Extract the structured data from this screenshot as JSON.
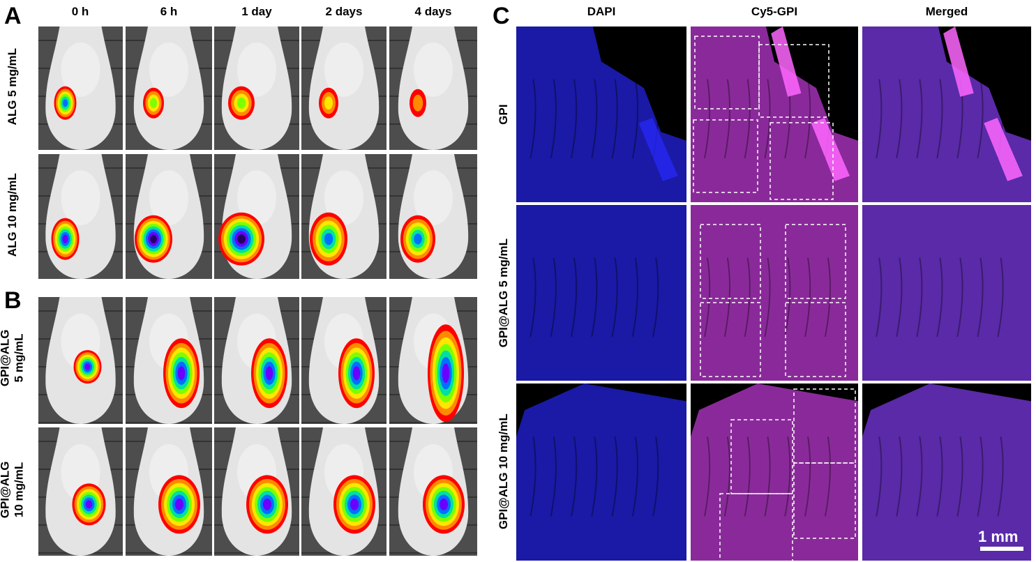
{
  "panels": {
    "a": "A",
    "b": "B",
    "c": "C"
  },
  "timepoints": [
    "0 h",
    "6 h",
    "1 day",
    "2 days",
    "4 days"
  ],
  "row_labels": {
    "alg5": "ALG 5 mg/mL",
    "alg10": "ALG 10 mg/mL",
    "gpi5_line1": "GPI@ALG",
    "gpi5_line2": "5 mg/mL",
    "gpi10_line1": "GPI@ALG",
    "gpi10_line2": "10 mg/mL"
  },
  "channels": [
    "DAPI",
    "Cy5-GPI",
    "Merged"
  ],
  "c_rows": {
    "gpi": "GPI",
    "gpi5": "GPI@ALG  5 mg/mL",
    "gpi10": "GPI@ALG  10 mg/mL"
  },
  "scale_bar": "1 mm",
  "colors": {
    "background_gray": "#4d4d4d",
    "mouse_body": "#e6e6e6",
    "dapi_blue": "#1a1aa6",
    "cy5_magenta": "#8a2a9a",
    "merged_purple": "#5a2aa8"
  }
}
